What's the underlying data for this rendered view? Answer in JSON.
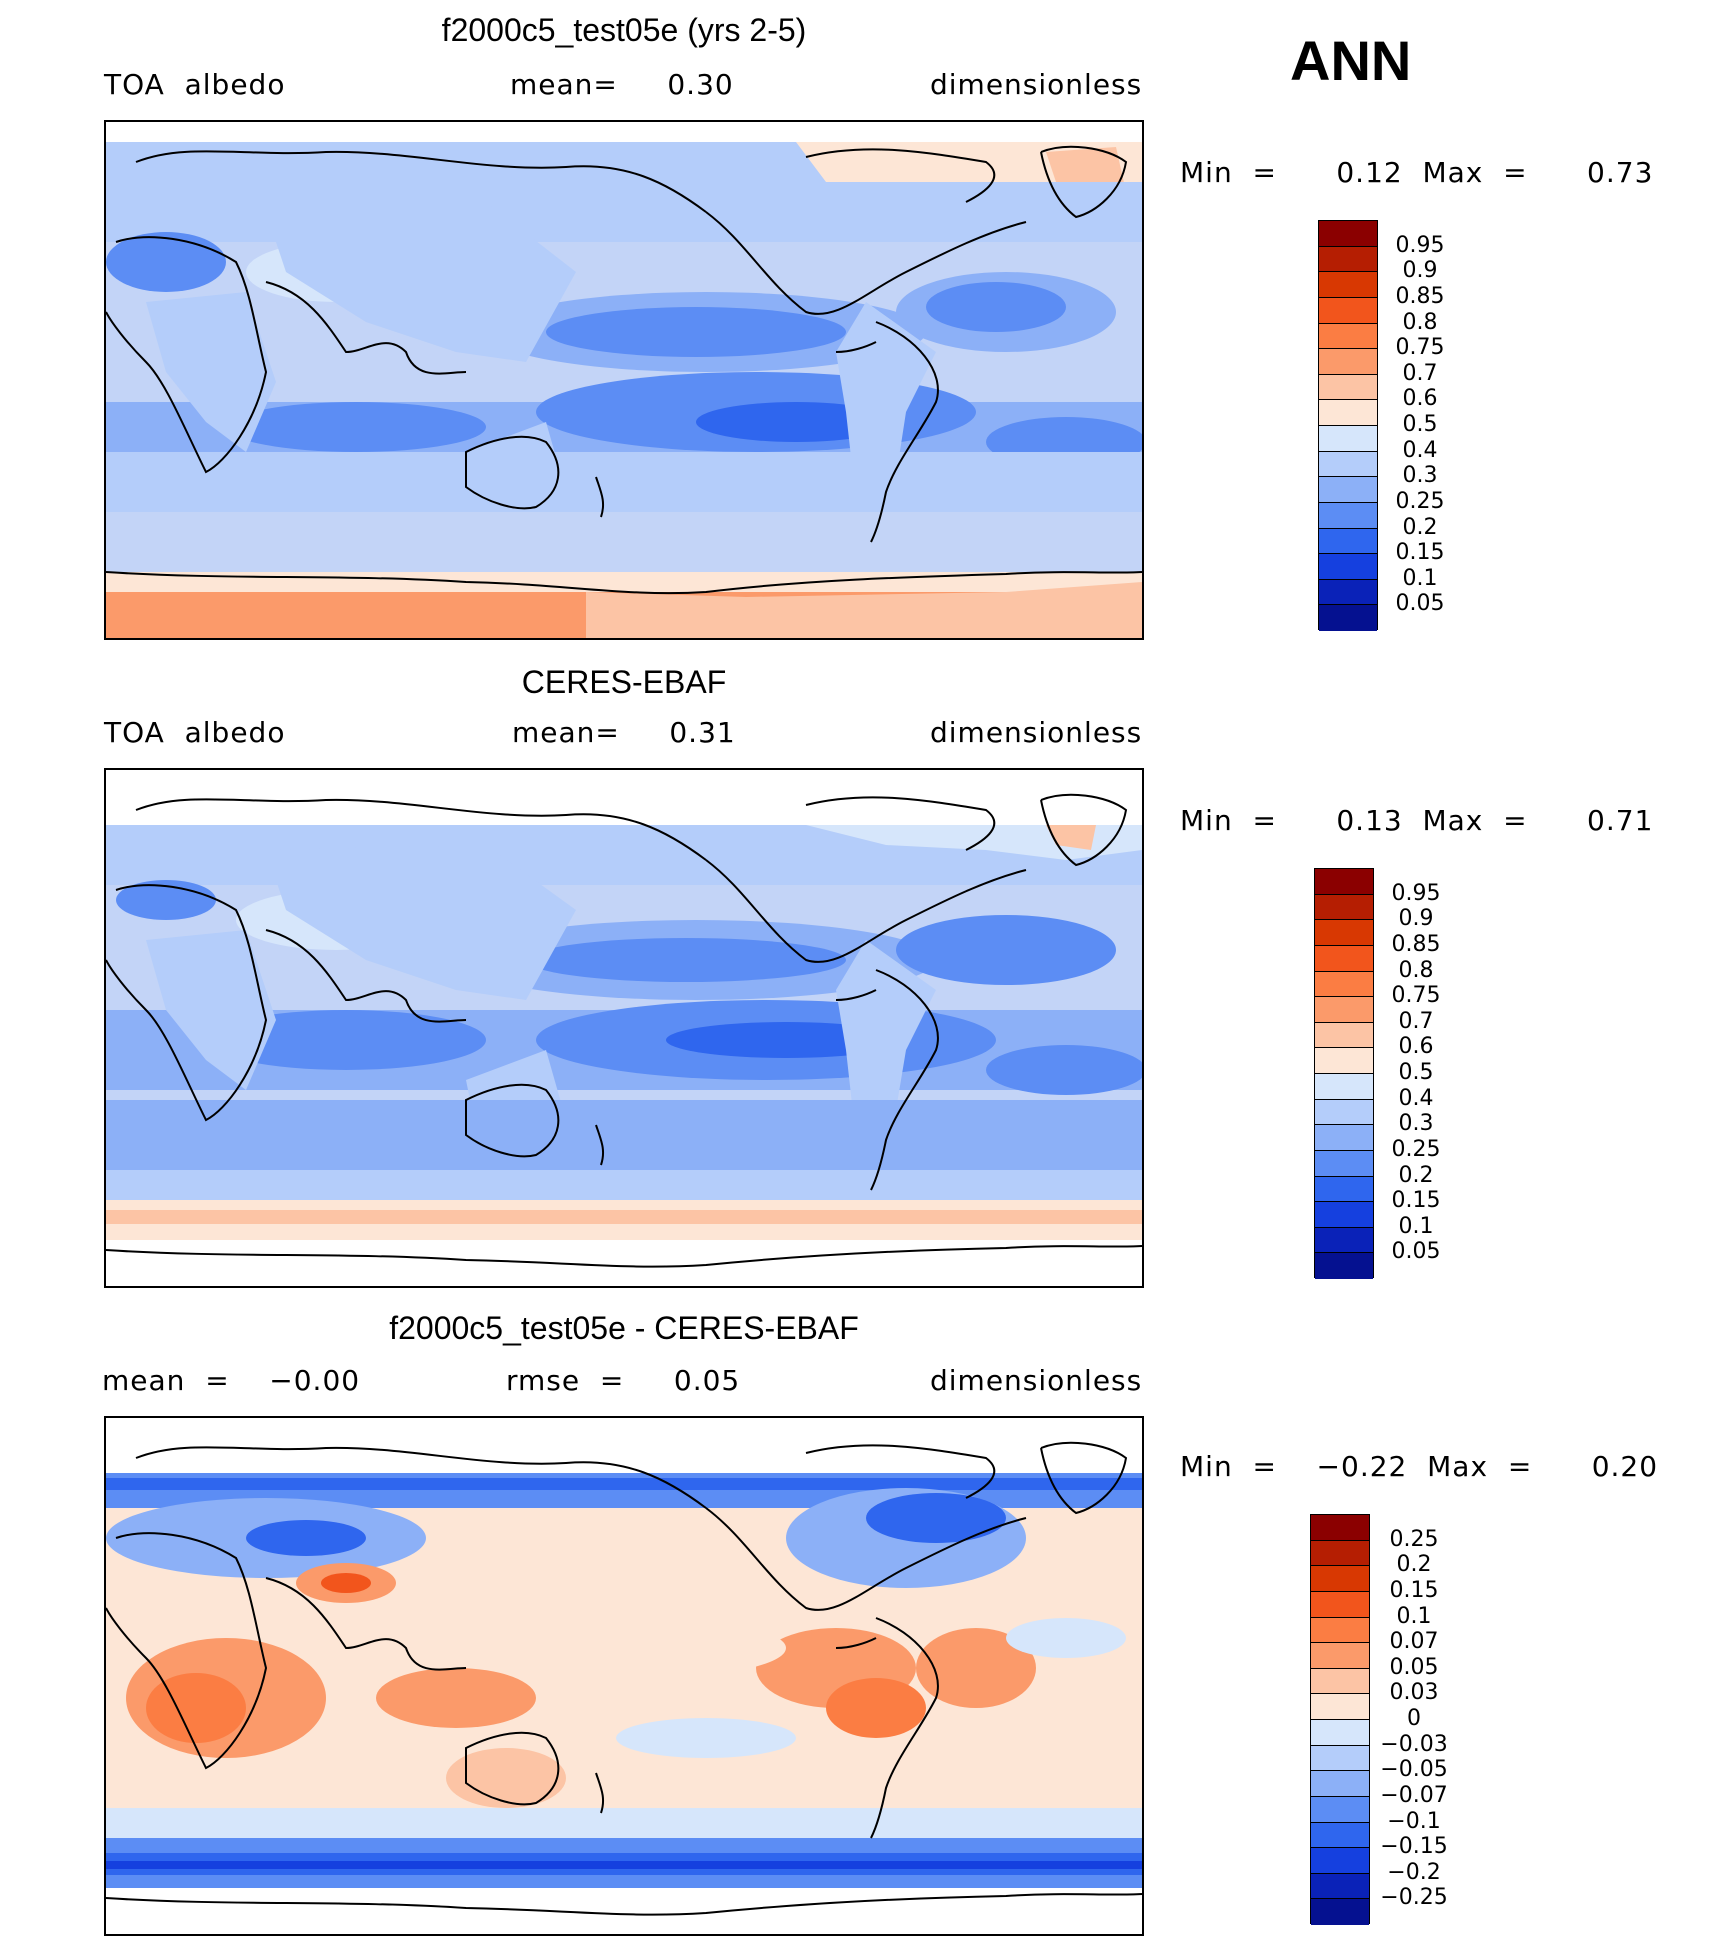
{
  "season": "ANN",
  "panels": [
    {
      "title": "f2000c5_test05e (yrs 2-5)",
      "left_label": "TOA  albedo",
      "center_label": "mean=     0.30",
      "right_label": "dimensionless",
      "min_label": "Min  =      0.12  Max  =      0.73",
      "levels": [
        "0.95",
        "0.9",
        "0.85",
        "0.8",
        "0.75",
        "0.7",
        "0.6",
        "0.5",
        "0.4",
        "0.3",
        "0.25",
        "0.2",
        "0.15",
        "0.1",
        "0.05"
      ],
      "colors": [
        "#8b0000",
        "#b51e02",
        "#d83802",
        "#f2551c",
        "#fb7d43",
        "#fb9a6a",
        "#fcc4a5",
        "#fde6d6",
        "#d6e6fb",
        "#b4cdfa",
        "#8cb0f7",
        "#5c8df4",
        "#2f66ee",
        "#1540df",
        "#0a22b8",
        "#051190"
      ]
    },
    {
      "title": "CERES-EBAF",
      "left_label": "TOA  albedo",
      "center_label": "mean=     0.31",
      "right_label": "dimensionless",
      "min_label": "Min  =      0.13  Max  =      0.71",
      "levels": [
        "0.95",
        "0.9",
        "0.85",
        "0.8",
        "0.75",
        "0.7",
        "0.6",
        "0.5",
        "0.4",
        "0.3",
        "0.25",
        "0.2",
        "0.15",
        "0.1",
        "0.05"
      ],
      "colors": [
        "#8b0000",
        "#b51e02",
        "#d83802",
        "#f2551c",
        "#fb7d43",
        "#fb9a6a",
        "#fcc4a5",
        "#fde6d6",
        "#d6e6fb",
        "#b4cdfa",
        "#8cb0f7",
        "#5c8df4",
        "#2f66ee",
        "#1540df",
        "#0a22b8",
        "#051190"
      ]
    },
    {
      "title": "f2000c5_test05e - CERES-EBAF",
      "left_label": "mean  =    −0.00",
      "center_label": "rmse  =     0.05",
      "right_label": "dimensionless",
      "min_label": "Min  =    −0.22  Max  =      0.20",
      "levels": [
        "0.25",
        "0.2",
        "0.15",
        "0.1",
        "0.07",
        "0.05",
        "0.03",
        "0",
        "−0.03",
        "−0.05",
        "−0.07",
        "−0.1",
        "−0.15",
        "−0.2",
        "−0.25"
      ],
      "colors": [
        "#8b0000",
        "#b51e02",
        "#d83802",
        "#f2551c",
        "#fb7d43",
        "#fb9a6a",
        "#fcc4a5",
        "#fde6d6",
        "#d6e6fb",
        "#b4cdfa",
        "#8cb0f7",
        "#5c8df4",
        "#2f66ee",
        "#1540df",
        "#0a22b8",
        "#051190"
      ]
    }
  ],
  "chart_data": [
    {
      "type": "heatmap",
      "title": "f2000c5_test05e (yrs 2-5)",
      "variable": "TOA  albedo",
      "units": "dimensionless",
      "mean": 0.3,
      "min": 0.12,
      "max": 0.73,
      "contour_levels": [
        0.05,
        0.1,
        0.15,
        0.2,
        0.25,
        0.3,
        0.4,
        0.5,
        0.6,
        0.7,
        0.75,
        0.8,
        0.85,
        0.9,
        0.95
      ]
    },
    {
      "type": "heatmap",
      "title": "CERES-EBAF",
      "variable": "TOA  albedo",
      "units": "dimensionless",
      "mean": 0.31,
      "min": 0.13,
      "max": 0.71,
      "contour_levels": [
        0.05,
        0.1,
        0.15,
        0.2,
        0.25,
        0.3,
        0.4,
        0.5,
        0.6,
        0.7,
        0.75,
        0.8,
        0.85,
        0.9,
        0.95
      ]
    },
    {
      "type": "heatmap",
      "title": "f2000c5_test05e - CERES-EBAF",
      "units": "dimensionless",
      "mean": -0.0,
      "rmse": 0.05,
      "min": -0.22,
      "max": 0.2,
      "contour_levels": [
        -0.25,
        -0.2,
        -0.15,
        -0.1,
        -0.07,
        -0.05,
        -0.03,
        0,
        0.03,
        0.05,
        0.07,
        0.1,
        0.15,
        0.2,
        0.25
      ]
    }
  ]
}
